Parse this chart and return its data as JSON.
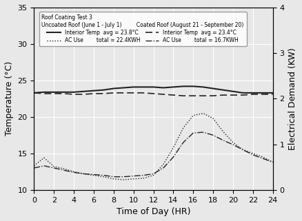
{
  "title": "Roof Coating Test 3",
  "legend_uncoated": "Uncoated Roof (June 1 - July 1)",
  "legend_coated": "Coated Roof (August 21 - September 20)",
  "uncoated_temp_label": "Interior Temp  avg = 23.8°C",
  "uncoated_ac_label": "AC Use        total = 22.4KWH",
  "coated_temp_label": "= =  Interior Temp  avg = 23.4°C",
  "coated_ac_label": "-.-  AC Use        total = 16.7KWH",
  "xlabel": "Time of Day (HR)",
  "ylabel_left": "Temperature (°C)",
  "ylabel_right": "Electrical Demand (KW)",
  "xlim": [
    0,
    24
  ],
  "ylim_left": [
    10,
    35
  ],
  "ylim_right": [
    0,
    4
  ],
  "xticks": [
    0,
    2,
    4,
    6,
    8,
    10,
    12,
    14,
    16,
    18,
    20,
    22,
    24
  ],
  "yticks_left": [
    10,
    15,
    20,
    25,
    30,
    35
  ],
  "yticks_right": [
    0,
    1,
    2,
    3,
    4
  ],
  "hours": [
    0,
    1,
    2,
    3,
    4,
    5,
    6,
    7,
    8,
    9,
    10,
    11,
    12,
    13,
    14,
    15,
    16,
    17,
    18,
    19,
    20,
    21,
    22,
    23,
    24
  ],
  "uncoated_temp": [
    23.3,
    23.4,
    23.4,
    23.4,
    23.4,
    23.5,
    23.6,
    23.7,
    23.9,
    24.0,
    24.1,
    24.1,
    24.1,
    24.0,
    24.1,
    24.2,
    24.2,
    24.1,
    23.9,
    23.7,
    23.5,
    23.3,
    23.3,
    23.3,
    23.3
  ],
  "coated_temp": [
    23.3,
    23.2,
    23.2,
    23.2,
    23.1,
    23.1,
    23.2,
    23.2,
    23.3,
    23.3,
    23.3,
    23.3,
    23.2,
    23.1,
    23.0,
    22.9,
    22.9,
    22.9,
    22.9,
    23.0,
    23.0,
    23.0,
    23.1,
    23.1,
    23.1
  ],
  "uncoated_ac": [
    13.3,
    14.4,
    13.2,
    12.9,
    12.5,
    12.2,
    12.0,
    11.8,
    11.5,
    11.4,
    11.5,
    11.6,
    12.0,
    13.5,
    15.8,
    18.5,
    20.2,
    20.5,
    19.8,
    18.0,
    16.5,
    15.5,
    15.0,
    14.5,
    13.8
  ],
  "coated_ac": [
    13.0,
    13.3,
    13.0,
    12.7,
    12.4,
    12.2,
    12.1,
    12.0,
    11.8,
    11.8,
    11.9,
    12.0,
    12.2,
    13.0,
    14.5,
    16.5,
    17.8,
    17.9,
    17.5,
    16.8,
    16.2,
    15.5,
    14.8,
    14.3,
    13.8
  ],
  "bg_color": "#e8e8e8",
  "line_color": "#222222",
  "grid_color": "#ffffff"
}
